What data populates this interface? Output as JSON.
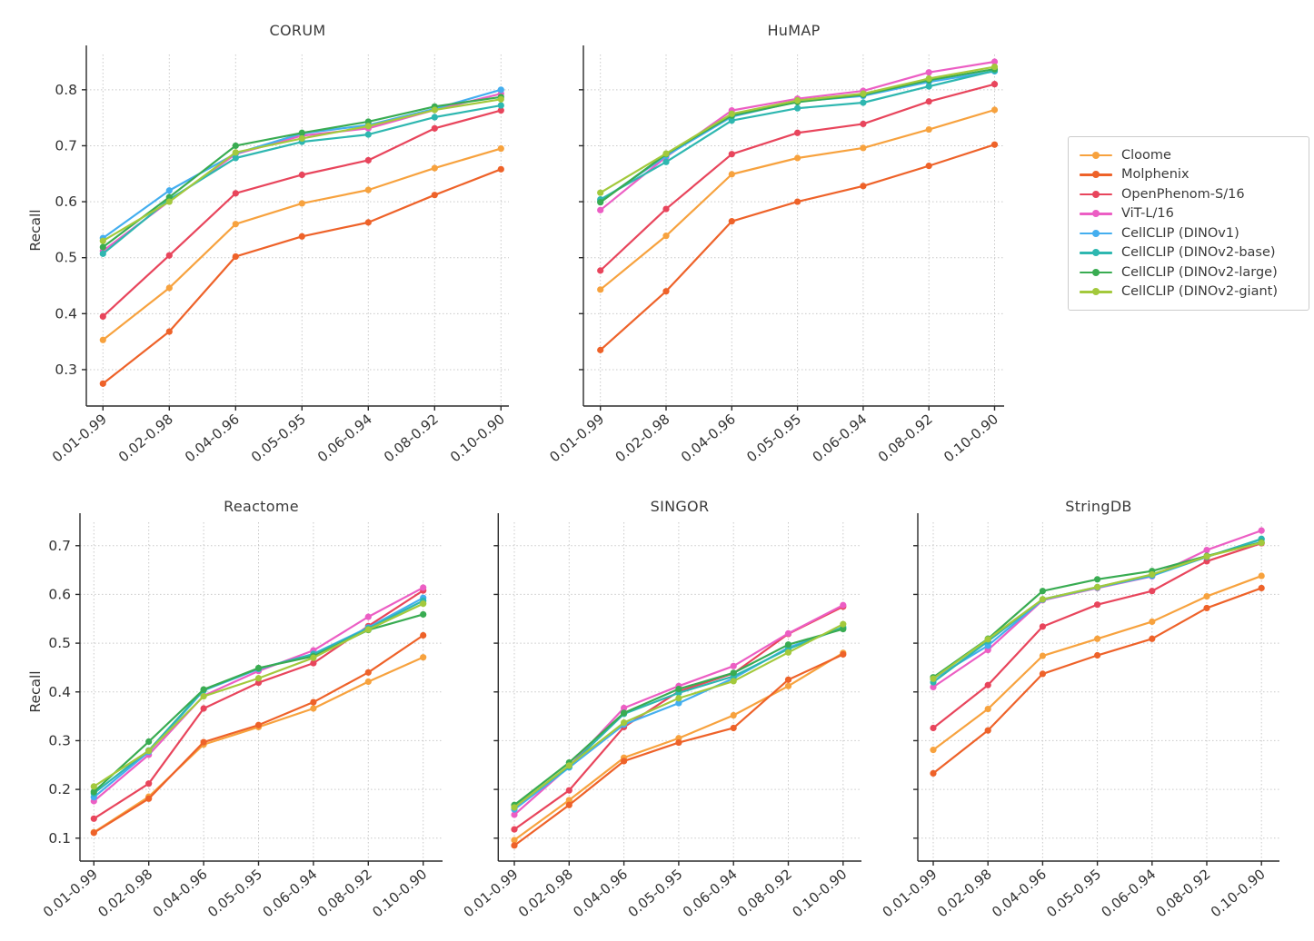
{
  "figure": {
    "background": "#ffffff",
    "grid_color": "#c9c9c9",
    "spine_color": "#2b2b2b",
    "tick_label_color": "#333333"
  },
  "legend": {
    "items": [
      {
        "label": "Cloome",
        "color": "#F7A23E"
      },
      {
        "label": "Molphenix",
        "color": "#EE6229"
      },
      {
        "label": "OpenPhenom-S/16",
        "color": "#E8455C"
      },
      {
        "label": "ViT-L/16",
        "color": "#EC5EC4"
      },
      {
        "label": "CellCLIP (DINOv1)",
        "color": "#44AEEF"
      },
      {
        "label": "CellCLIP (DINOv2-base)",
        "color": "#2EB7B0"
      },
      {
        "label": "CellCLIP (DINOv2-large)",
        "color": "#39AC52"
      },
      {
        "label": "CellCLIP (DINOv2-giant)",
        "color": "#A3C93C"
      }
    ]
  },
  "chart_data": [
    {
      "type": "line",
      "title": "CORUM",
      "ylabel": "Recall",
      "xlabel": "",
      "grid": true,
      "categories": [
        "0.01-0.99",
        "0.02-0.98",
        "0.04-0.96",
        "0.05-0.95",
        "0.06-0.94",
        "0.08-0.92",
        "0.10-0.90"
      ],
      "yticks": [
        0.3,
        0.4,
        0.5,
        0.6,
        0.7,
        0.8
      ],
      "ylim": [
        0.235,
        0.863
      ],
      "ytick_labels_visible": true,
      "series": [
        {
          "name": "Cloome",
          "values": [
            0.353,
            0.446,
            0.56,
            0.597,
            0.621,
            0.66,
            0.695
          ]
        },
        {
          "name": "Molphenix",
          "values": [
            0.275,
            0.368,
            0.502,
            0.538,
            0.563,
            0.612,
            0.658
          ]
        },
        {
          "name": "OpenPhenom-S/16",
          "values": [
            0.395,
            0.504,
            0.615,
            0.648,
            0.674,
            0.731,
            0.763
          ]
        },
        {
          "name": "ViT-L/16",
          "values": [
            0.512,
            0.601,
            0.685,
            0.718,
            0.731,
            0.764,
            0.793
          ]
        },
        {
          "name": "CellCLIP (DINOv1)",
          "values": [
            0.535,
            0.62,
            0.686,
            0.722,
            0.737,
            0.766,
            0.8
          ]
        },
        {
          "name": "CellCLIP (DINOv2-base)",
          "values": [
            0.507,
            0.604,
            0.678,
            0.707,
            0.72,
            0.751,
            0.772
          ]
        },
        {
          "name": "CellCLIP (DINOv2-large)",
          "values": [
            0.519,
            0.608,
            0.7,
            0.723,
            0.743,
            0.77,
            0.787
          ]
        },
        {
          "name": "CellCLIP (DINOv2-giant)",
          "values": [
            0.53,
            0.6,
            0.688,
            0.713,
            0.735,
            0.764,
            0.783
          ]
        }
      ]
    },
    {
      "type": "line",
      "title": "HuMAP",
      "ylabel": "",
      "xlabel": "",
      "grid": true,
      "categories": [
        "0.01-0.99",
        "0.02-0.98",
        "0.04-0.96",
        "0.05-0.95",
        "0.06-0.94",
        "0.08-0.92",
        "0.10-0.90"
      ],
      "yticks": [
        0.3,
        0.4,
        0.5,
        0.6,
        0.7,
        0.8
      ],
      "ylim": [
        0.235,
        0.863
      ],
      "ytick_labels_visible": false,
      "series": [
        {
          "name": "Cloome",
          "values": [
            0.443,
            0.539,
            0.649,
            0.678,
            0.696,
            0.729,
            0.764
          ]
        },
        {
          "name": "Molphenix",
          "values": [
            0.335,
            0.44,
            0.565,
            0.6,
            0.628,
            0.664,
            0.702
          ]
        },
        {
          "name": "OpenPhenom-S/16",
          "values": [
            0.477,
            0.587,
            0.685,
            0.723,
            0.739,
            0.779,
            0.81
          ]
        },
        {
          "name": "ViT-L/16",
          "values": [
            0.585,
            0.68,
            0.763,
            0.784,
            0.798,
            0.831,
            0.85
          ]
        },
        {
          "name": "CellCLIP (DINOv1)",
          "values": [
            0.601,
            0.682,
            0.752,
            0.779,
            0.789,
            0.814,
            0.833
          ]
        },
        {
          "name": "CellCLIP (DINOv2-base)",
          "values": [
            0.604,
            0.671,
            0.745,
            0.767,
            0.777,
            0.806,
            0.834
          ]
        },
        {
          "name": "CellCLIP (DINOv2-large)",
          "values": [
            0.599,
            0.685,
            0.754,
            0.778,
            0.791,
            0.817,
            0.837
          ]
        },
        {
          "name": "CellCLIP (DINOv2-giant)",
          "values": [
            0.616,
            0.686,
            0.757,
            0.781,
            0.793,
            0.82,
            0.841
          ]
        }
      ]
    },
    {
      "type": "line",
      "title": "Reactome",
      "ylabel": "Recall",
      "xlabel": "",
      "grid": true,
      "categories": [
        "0.01-0.99",
        "0.02-0.98",
        "0.04-0.96",
        "0.05-0.95",
        "0.06-0.94",
        "0.08-0.92",
        "0.10-0.90"
      ],
      "yticks": [
        0.1,
        0.2,
        0.3,
        0.4,
        0.5,
        0.6,
        0.7
      ],
      "ylim": [
        0.053,
        0.748
      ],
      "ytick_labels_visible": true,
      "series": [
        {
          "name": "Cloome",
          "values": [
            0.112,
            0.185,
            0.292,
            0.328,
            0.366,
            0.421,
            0.471
          ]
        },
        {
          "name": "Molphenix",
          "values": [
            0.111,
            0.181,
            0.297,
            0.332,
            0.379,
            0.44,
            0.516
          ]
        },
        {
          "name": "OpenPhenom-S/16",
          "values": [
            0.14,
            0.212,
            0.366,
            0.419,
            0.459,
            0.535,
            0.608
          ]
        },
        {
          "name": "ViT-L/16",
          "values": [
            0.176,
            0.271,
            0.392,
            0.443,
            0.485,
            0.554,
            0.614
          ]
        },
        {
          "name": "CellCLIP (DINOv1)",
          "values": [
            0.184,
            0.277,
            0.403,
            0.447,
            0.478,
            0.532,
            0.593
          ]
        },
        {
          "name": "CellCLIP (DINOv2-base)",
          "values": [
            0.192,
            0.28,
            0.404,
            0.448,
            0.477,
            0.53,
            0.587
          ]
        },
        {
          "name": "CellCLIP (DINOv2-large)",
          "values": [
            0.195,
            0.298,
            0.405,
            0.449,
            0.473,
            0.527,
            0.559
          ]
        },
        {
          "name": "CellCLIP (DINOv2-giant)",
          "values": [
            0.206,
            0.279,
            0.391,
            0.428,
            0.47,
            0.528,
            0.581
          ]
        }
      ]
    },
    {
      "type": "line",
      "title": "SINGOR",
      "ylabel": "",
      "xlabel": "",
      "grid": true,
      "categories": [
        "0.01-0.99",
        "0.02-0.98",
        "0.04-0.96",
        "0.05-0.95",
        "0.06-0.94",
        "0.08-0.92",
        "0.10-0.90"
      ],
      "yticks": [
        0.1,
        0.2,
        0.3,
        0.4,
        0.5,
        0.6,
        0.7
      ],
      "ylim": [
        0.053,
        0.748
      ],
      "ytick_labels_visible": false,
      "series": [
        {
          "name": "Cloome",
          "values": [
            0.096,
            0.178,
            0.265,
            0.305,
            0.352,
            0.412,
            0.48
          ]
        },
        {
          "name": "Molphenix",
          "values": [
            0.085,
            0.168,
            0.258,
            0.296,
            0.326,
            0.425,
            0.477
          ]
        },
        {
          "name": "OpenPhenom-S/16",
          "values": [
            0.118,
            0.198,
            0.328,
            0.401,
            0.438,
            0.519,
            0.575
          ]
        },
        {
          "name": "ViT-L/16",
          "values": [
            0.148,
            0.247,
            0.367,
            0.412,
            0.453,
            0.52,
            0.578
          ]
        },
        {
          "name": "CellCLIP (DINOv1)",
          "values": [
            0.159,
            0.245,
            0.333,
            0.377,
            0.428,
            0.491,
            0.531
          ]
        },
        {
          "name": "CellCLIP (DINOv2-base)",
          "values": [
            0.164,
            0.247,
            0.355,
            0.398,
            0.432,
            0.488,
            0.533
          ]
        },
        {
          "name": "CellCLIP (DINOv2-large)",
          "values": [
            0.168,
            0.255,
            0.357,
            0.406,
            0.439,
            0.497,
            0.529
          ]
        },
        {
          "name": "CellCLIP (DINOv2-giant)",
          "values": [
            0.163,
            0.249,
            0.337,
            0.387,
            0.422,
            0.481,
            0.539
          ]
        }
      ]
    },
    {
      "type": "line",
      "title": "StringDB",
      "ylabel": "",
      "xlabel": "",
      "grid": true,
      "categories": [
        "0.01-0.99",
        "0.02-0.98",
        "0.04-0.96",
        "0.05-0.95",
        "0.06-0.94",
        "0.08-0.92",
        "0.10-0.90"
      ],
      "yticks": [
        0.1,
        0.2,
        0.3,
        0.4,
        0.5,
        0.6,
        0.7
      ],
      "ylim": [
        0.053,
        0.748
      ],
      "ytick_labels_visible": false,
      "series": [
        {
          "name": "Cloome",
          "values": [
            0.281,
            0.365,
            0.474,
            0.509,
            0.544,
            0.596,
            0.638
          ]
        },
        {
          "name": "Molphenix",
          "values": [
            0.233,
            0.321,
            0.437,
            0.475,
            0.509,
            0.572,
            0.613
          ]
        },
        {
          "name": "OpenPhenom-S/16",
          "values": [
            0.326,
            0.414,
            0.534,
            0.579,
            0.607,
            0.668,
            0.705
          ]
        },
        {
          "name": "ViT-L/16",
          "values": [
            0.41,
            0.486,
            0.588,
            0.613,
            0.637,
            0.691,
            0.731
          ]
        },
        {
          "name": "CellCLIP (DINOv1)",
          "values": [
            0.427,
            0.495,
            0.589,
            0.614,
            0.638,
            0.677,
            0.713
          ]
        },
        {
          "name": "CellCLIP (DINOv2-base)",
          "values": [
            0.42,
            0.504,
            0.59,
            0.615,
            0.64,
            0.677,
            0.714
          ]
        },
        {
          "name": "CellCLIP (DINOv2-large)",
          "values": [
            0.43,
            0.509,
            0.607,
            0.631,
            0.648,
            0.679,
            0.707
          ]
        },
        {
          "name": "CellCLIP (DINOv2-giant)",
          "values": [
            0.427,
            0.508,
            0.59,
            0.615,
            0.641,
            0.678,
            0.706
          ]
        }
      ]
    }
  ]
}
